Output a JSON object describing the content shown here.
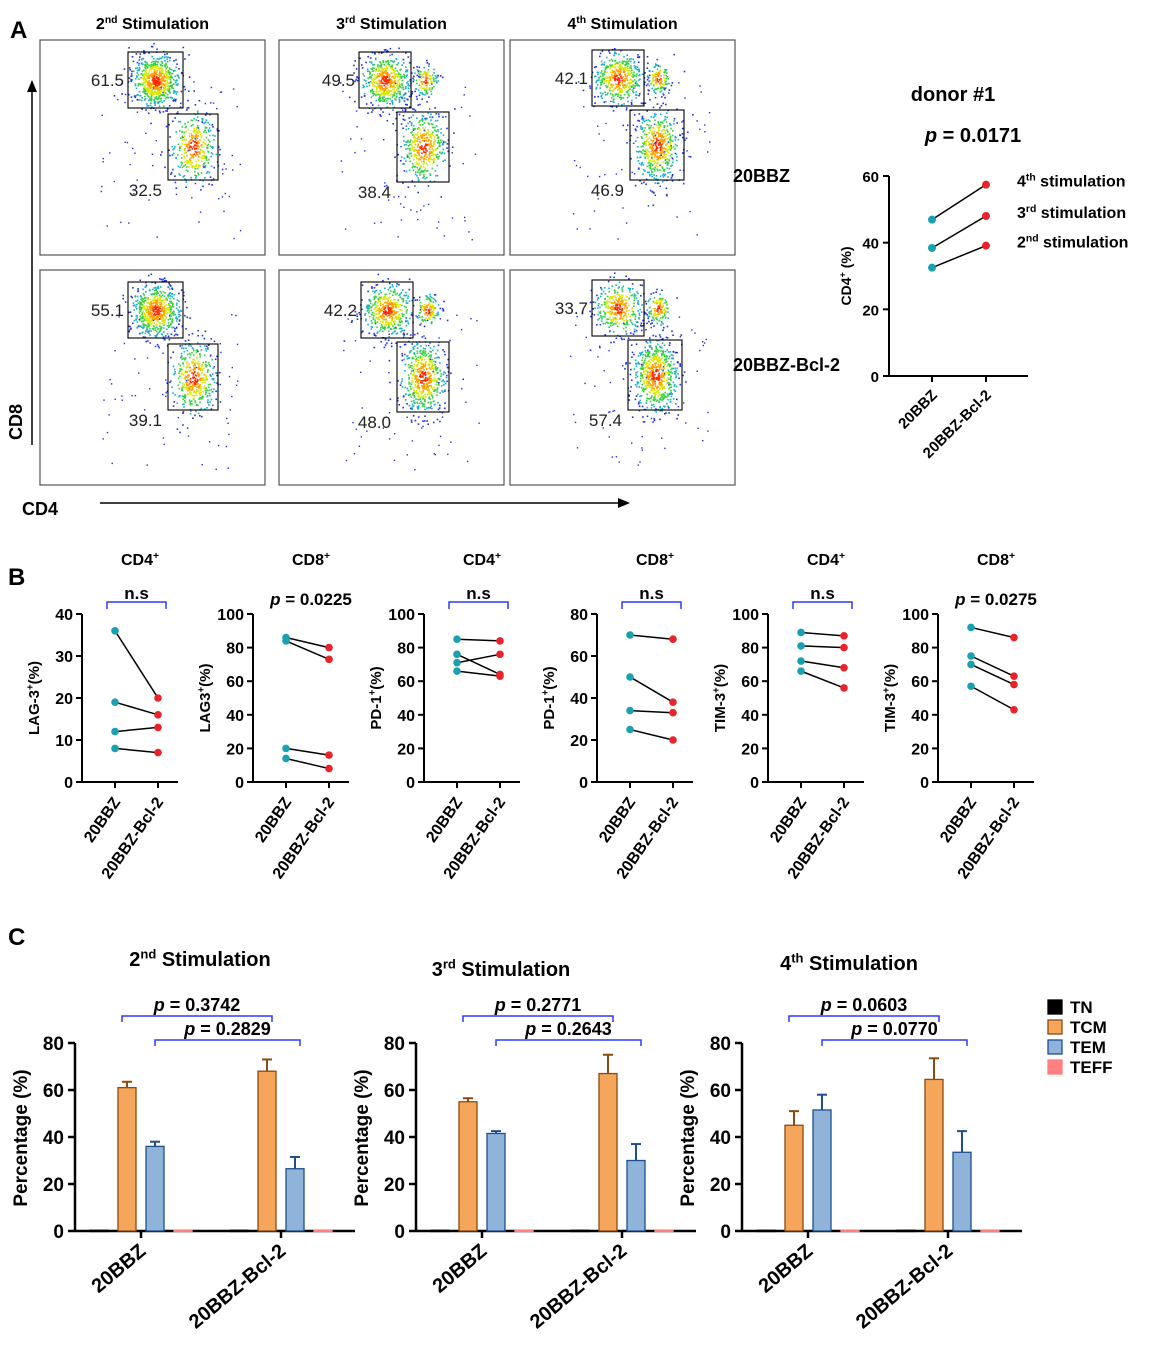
{
  "panel_labels": {
    "a": "A",
    "b": "B",
    "c": "C"
  },
  "colors": {
    "blue_dot": "#1aa0b0",
    "red_dot": "#e8242b",
    "bracket": "#2b3bff",
    "tcm": "#f6a65a",
    "tem": "#8fb3d9",
    "teff": "#ff8080",
    "tn": "#000000"
  },
  "chart_data": [
    {
      "type": "scatter",
      "title": "Flow cytometry CD4/CD8 gating",
      "xlabel": "CD4",
      "ylabel": "CD8",
      "columns": [
        {
          "sup": "nd",
          "pre": "2",
          "post": " Stimulation"
        },
        {
          "sup": "rd",
          "pre": "3",
          "post": " Stimulation"
        },
        {
          "sup": "th",
          "pre": "4",
          "post": " Stimulation"
        }
      ],
      "rows": [
        {
          "name": "20BBZ",
          "cd8_gate": [
            61.5,
            49.5,
            42.1
          ],
          "cd4_gate": [
            32.5,
            38.4,
            46.9
          ]
        },
        {
          "name": "20BBZ-Bcl-2",
          "cd8_gate": [
            55.1,
            42.2,
            33.7
          ],
          "cd4_gate": [
            39.1,
            48.0,
            57.4
          ]
        }
      ],
      "gate_labels": {
        "r0": [
          "61.5",
          "49.5",
          "42.1",
          "32.5",
          "38.4",
          "46.9"
        ],
        "r1": [
          "55.1",
          "42.2",
          "33.7",
          "39.1",
          "48.0",
          "57.4"
        ]
      }
    },
    {
      "type": "line",
      "title": "donor #1",
      "p_prefix": "p",
      "p_value": " = 0.0171",
      "ylabel_pre": "CD4",
      "ylabel_sup": "+",
      "ylabel_post": " (%)",
      "categories": [
        "20BBZ",
        "20BBZ-Bcl-2"
      ],
      "ylim": [
        0,
        60
      ],
      "yticks": [
        "0",
        "20",
        "40",
        "60"
      ],
      "series": [
        {
          "pre": "4",
          "sup": "th",
          "post": " stimulation",
          "values": [
            46.9,
            57.4
          ]
        },
        {
          "pre": "3",
          "sup": "rd",
          "post": " stimulation",
          "values": [
            38.4,
            48.0
          ]
        },
        {
          "pre": "2",
          "sup": "nd",
          "post": " stimulation",
          "values": [
            32.5,
            39.1
          ]
        }
      ]
    },
    {
      "type": "line",
      "title_pre": "CD4",
      "title_sup": "+",
      "ylabel_pre": "LAG-3",
      "ylabel_sup": "+",
      "ylabel_post": "(%)",
      "stat": "n.s",
      "bracket": true,
      "categories": [
        "20BBZ",
        "20BBZ-Bcl-2"
      ],
      "ylim": [
        0,
        40
      ],
      "yticks": [
        "0",
        "10",
        "20",
        "30",
        "40"
      ],
      "pairs": [
        [
          36,
          20
        ],
        [
          19,
          16
        ],
        [
          12,
          13
        ],
        [
          8,
          7
        ]
      ]
    },
    {
      "type": "line",
      "title_pre": "CD8",
      "title_sup": "+",
      "ylabel_pre": "LAG3",
      "ylabel_sup": "+",
      "ylabel_post": "(%)",
      "stat_p": "p",
      "stat": " = 0.0225",
      "bracket": false,
      "categories": [
        "20BBZ",
        "20BBZ-Bcl-2"
      ],
      "ylim": [
        0,
        100
      ],
      "yticks": [
        "0",
        "20",
        "40",
        "60",
        "80",
        "100"
      ],
      "pairs": [
        [
          86,
          80
        ],
        [
          84,
          73
        ],
        [
          20,
          16
        ],
        [
          14,
          8
        ]
      ]
    },
    {
      "type": "line",
      "title_pre": "CD4",
      "title_sup": "+",
      "ylabel_pre": "PD-1",
      "ylabel_sup": "+",
      "ylabel_post": "(%)",
      "stat": "n.s",
      "bracket": true,
      "categories": [
        "20BBZ",
        "20BBZ-Bcl-2"
      ],
      "ylim": [
        0,
        100
      ],
      "yticks": [
        "0",
        "20",
        "40",
        "60",
        "80",
        "100"
      ],
      "pairs": [
        [
          85,
          84
        ],
        [
          76,
          64
        ],
        [
          71,
          76
        ],
        [
          66,
          63
        ]
      ]
    },
    {
      "type": "line",
      "title_pre": "CD8",
      "title_sup": "+",
      "ylabel_pre": "PD-1",
      "ylabel_sup": "+",
      "ylabel_post": "(%)",
      "stat": "n.s",
      "bracket": true,
      "categories": [
        "20BBZ",
        "20BBZ-Bcl-2"
      ],
      "ylim": [
        0,
        80
      ],
      "yticks": [
        "0",
        "20",
        "40",
        "60",
        "80"
      ],
      "pairs": [
        [
          70,
          68
        ],
        [
          50,
          38
        ],
        [
          34,
          33
        ],
        [
          25,
          20
        ]
      ]
    },
    {
      "type": "line",
      "title_pre": "CD4",
      "title_sup": "+",
      "ylabel_pre": "TIM-3",
      "ylabel_sup": "+",
      "ylabel_post": "(%)",
      "stat": "n.s",
      "bracket": true,
      "categories": [
        "20BBZ",
        "20BBZ-Bcl-2"
      ],
      "ylim": [
        0,
        100
      ],
      "yticks": [
        "0",
        "20",
        "40",
        "60",
        "80",
        "100"
      ],
      "pairs": [
        [
          89,
          87
        ],
        [
          81,
          80
        ],
        [
          72,
          68
        ],
        [
          66,
          56
        ]
      ]
    },
    {
      "type": "line",
      "title_pre": "CD8",
      "title_sup": "+",
      "ylabel_pre": "TIM-3",
      "ylabel_sup": "+",
      "ylabel_post": "(%)",
      "stat_p": "p",
      "stat": " = 0.0275",
      "bracket": false,
      "categories": [
        "20BBZ",
        "20BBZ-Bcl-2"
      ],
      "ylim": [
        0,
        100
      ],
      "yticks": [
        "0",
        "20",
        "40",
        "60",
        "80",
        "100"
      ],
      "pairs": [
        [
          92,
          86
        ],
        [
          75,
          63
        ],
        [
          70,
          58
        ],
        [
          57,
          43
        ]
      ]
    },
    {
      "type": "bar",
      "title_pre": "2",
      "title_sup": "nd",
      "title_post": " Stimulation",
      "ylabel": "Percentage (%)",
      "categories": [
        "20BBZ",
        "20BBZ-Bcl-2"
      ],
      "ylim": [
        0,
        80
      ],
      "yticks": [
        "0",
        "20",
        "40",
        "60",
        "80"
      ],
      "series": [
        {
          "name": "TN",
          "values": [
            0.3,
            0.3
          ],
          "err": [
            0,
            0
          ]
        },
        {
          "name": "TCM",
          "values": [
            61,
            68
          ],
          "err": [
            2.5,
            5
          ]
        },
        {
          "name": "TEM",
          "values": [
            36,
            26.5
          ],
          "err": [
            2,
            5
          ]
        },
        {
          "name": "TEFF",
          "values": [
            0.3,
            0.3
          ],
          "err": [
            0,
            0
          ]
        }
      ],
      "p1": " = 0.3742",
      "p2": " = 0.2829",
      "p_prefix": "p"
    },
    {
      "type": "bar",
      "title_pre": "3",
      "title_sup": "rd",
      "title_post": " Stimulation",
      "ylabel": "Percentage (%)",
      "categories": [
        "20BBZ",
        "20BBZ-Bcl-2"
      ],
      "ylim": [
        0,
        80
      ],
      "yticks": [
        "0",
        "20",
        "40",
        "60",
        "80"
      ],
      "series": [
        {
          "name": "TN",
          "values": [
            0.3,
            0.3
          ],
          "err": [
            0,
            0
          ]
        },
        {
          "name": "TCM",
          "values": [
            55,
            67
          ],
          "err": [
            1.5,
            8
          ]
        },
        {
          "name": "TEM",
          "values": [
            41.5,
            30
          ],
          "err": [
            1,
            7
          ]
        },
        {
          "name": "TEFF",
          "values": [
            0.3,
            0.3
          ],
          "err": [
            0,
            0
          ]
        }
      ],
      "p1": " = 0.2771",
      "p2": " = 0.2643",
      "p_prefix": "p"
    },
    {
      "type": "bar",
      "title_pre": "4",
      "title_sup": "th",
      "title_post": " Stimulation",
      "ylabel": "Percentage (%)",
      "categories": [
        "20BBZ",
        "20BBZ-Bcl-2"
      ],
      "ylim": [
        0,
        80
      ],
      "yticks": [
        "0",
        "20",
        "40",
        "60",
        "80"
      ],
      "series": [
        {
          "name": "TN",
          "values": [
            0.3,
            0.3
          ],
          "err": [
            0,
            0
          ]
        },
        {
          "name": "TCM",
          "values": [
            45,
            64.5
          ],
          "err": [
            6,
            9
          ]
        },
        {
          "name": "TEM",
          "values": [
            51.5,
            33.5
          ],
          "err": [
            6.5,
            9
          ]
        },
        {
          "name": "TEFF",
          "values": [
            0.3,
            0.3
          ],
          "err": [
            0,
            0
          ]
        }
      ],
      "p1": " = 0.0603",
      "p2": " = 0.0770",
      "p_prefix": "p"
    }
  ],
  "legend": [
    "TN",
    "TCM",
    "TEM",
    "TEFF"
  ]
}
